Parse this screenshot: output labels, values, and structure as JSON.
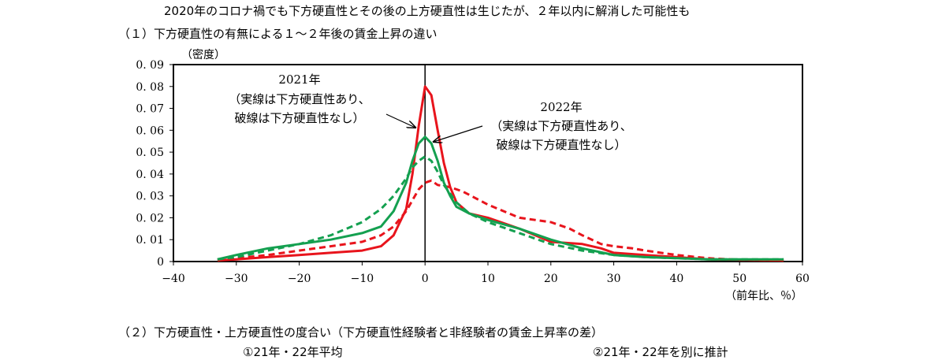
{
  "headline": "2020年のコロナ禍でも下方硬直性とその後の上方硬直性は生じたが、２年以内に解消した可能性も",
  "section1": "（１）下方硬直性の有無による１～２年後の賃金上昇の違い",
  "section2": "（２）下方硬直性・上方硬直性の度合い（下方硬直性経験者と非経験者の賃金上昇率の差）",
  "sub_left": "①21年・22年平均",
  "sub_right": "②21年・22年を別に推計",
  "chart_data": {
    "type": "line",
    "ylabel": "（密度）",
    "xlabel": "（前年比、％）",
    "xlim": [
      -40,
      60
    ],
    "ylim": [
      0,
      0.09
    ],
    "xticks": [
      -40,
      -30,
      -20,
      -10,
      0,
      10,
      20,
      30,
      40,
      50,
      60
    ],
    "yticks": [
      "0",
      "0.01",
      "0.02",
      "0.03",
      "0.04",
      "0.05",
      "0.06",
      "0.07",
      "0.08",
      "0.09"
    ],
    "grid": false,
    "annotations": [
      {
        "lines": [
          "2021年",
          "（実線は下方硬直性あり、",
          "破線は下方硬直性なし）"
        ]
      },
      {
        "lines": [
          "2022年",
          "（実線は下方硬直性あり、",
          "破線は下方硬直性なし）"
        ]
      }
    ],
    "series": [
      {
        "color": "#e8141c",
        "dash": false,
        "x": [
          -33,
          -30,
          -25,
          -20,
          -15,
          -10,
          -7,
          -5,
          -3,
          -2,
          -1,
          0,
          1,
          2,
          3,
          4,
          5,
          7,
          10,
          15,
          20,
          25,
          28,
          30,
          35,
          40,
          45,
          50,
          57
        ],
        "y": [
          0.0005,
          0.001,
          0.002,
          0.003,
          0.004,
          0.005,
          0.007,
          0.012,
          0.024,
          0.04,
          0.062,
          0.08,
          0.076,
          0.06,
          0.045,
          0.034,
          0.027,
          0.022,
          0.02,
          0.015,
          0.009,
          0.008,
          0.006,
          0.004,
          0.003,
          0.002,
          0.001,
          0.0008,
          0.0005
        ]
      },
      {
        "color": "#e8141c",
        "dash": true,
        "x": [
          -33,
          -30,
          -25,
          -20,
          -15,
          -10,
          -7,
          -5,
          -3,
          -2,
          -1,
          0,
          1,
          2,
          4,
          6,
          8,
          10,
          15,
          20,
          23,
          25,
          28,
          30,
          33,
          35,
          40,
          45,
          50,
          57
        ],
        "y": [
          0.0008,
          0.0015,
          0.003,
          0.005,
          0.007,
          0.009,
          0.012,
          0.016,
          0.023,
          0.028,
          0.033,
          0.036,
          0.037,
          0.035,
          0.034,
          0.032,
          0.029,
          0.026,
          0.02,
          0.018,
          0.015,
          0.012,
          0.008,
          0.007,
          0.006,
          0.005,
          0.003,
          0.0015,
          0.0008,
          0.0005
        ]
      },
      {
        "color": "#14a050",
        "dash": false,
        "x": [
          -33,
          -30,
          -25,
          -20,
          -15,
          -10,
          -7,
          -5,
          -3,
          -2,
          -1,
          0,
          1,
          2,
          3,
          4,
          5,
          7,
          10,
          15,
          20,
          25,
          30,
          35,
          40,
          45,
          50,
          57
        ],
        "y": [
          0.001,
          0.003,
          0.006,
          0.008,
          0.01,
          0.013,
          0.016,
          0.023,
          0.036,
          0.046,
          0.054,
          0.057,
          0.054,
          0.046,
          0.036,
          0.03,
          0.025,
          0.022,
          0.019,
          0.015,
          0.01,
          0.006,
          0.003,
          0.002,
          0.0015,
          0.001,
          0.001,
          0.001
        ]
      },
      {
        "color": "#14a050",
        "dash": true,
        "x": [
          -33,
          -30,
          -25,
          -20,
          -15,
          -10,
          -7,
          -5,
          -3,
          -2,
          -1,
          0,
          1,
          2,
          3,
          5,
          7,
          10,
          15,
          20,
          25,
          30,
          35,
          40,
          45,
          50,
          57
        ],
        "y": [
          0.001,
          0.002,
          0.005,
          0.008,
          0.012,
          0.018,
          0.024,
          0.03,
          0.038,
          0.043,
          0.046,
          0.048,
          0.046,
          0.041,
          0.035,
          0.027,
          0.022,
          0.018,
          0.013,
          0.008,
          0.005,
          0.003,
          0.002,
          0.0015,
          0.001,
          0.001,
          0.001
        ]
      }
    ]
  }
}
